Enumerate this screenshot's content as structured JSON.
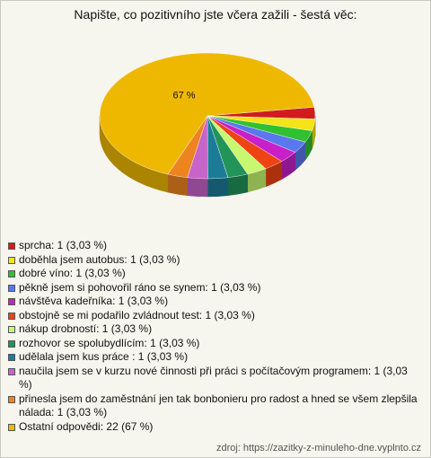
{
  "chart_data": {
    "type": "pie",
    "title": "Napište, co pozitivního jste včera zažili - šestá věc:",
    "categories": [
      "sprcha: 1 (3,03 %)",
      "doběhla jsem autobus: 1 (3,03 %)",
      "dobré víno: 1 (3,03 %)",
      "pěkně jsem si pohovořil ráno se synem: 1 (3,03 %)",
      "návštěva kadeřníka: 1 (3,03 %)",
      "obstojně se mi podařilo zvládnout test: 1 (3,03 %)",
      "nákup drobností: 1 (3,03 %)",
      "rozhovor se spolubydlícím: 1 (3,03 %)",
      "udělala jsem kus práce : 1 (3,03 %)",
      "naučila jsem se v kurzu nové činnosti při práci s počítačovým programem: 1 (3,03 %)",
      "přinesla jsem do zaměstnání jen tak bonbonieru pro radost a hned se všem zlepšila nálada: 1 (3,03 %)",
      "Ostatní odpovědi: 22 (67 %)"
    ],
    "values": [
      3.03,
      3.03,
      3.03,
      3.03,
      3.03,
      3.03,
      3.03,
      3.03,
      3.03,
      3.03,
      3.03,
      67
    ],
    "value_labels": [
      null,
      null,
      null,
      null,
      null,
      null,
      null,
      null,
      null,
      null,
      null,
      "67 %"
    ],
    "colors": [
      "#d01c1c",
      "#f4e418",
      "#30c030",
      "#5a78ee",
      "#c820c8",
      "#ee4414",
      "#c8f870",
      "#22945a",
      "#1c7c98",
      "#c864c8",
      "#ee8420",
      "#eeb800"
    ],
    "source": "zdroj: https://zazitky-z-minuleho-dne.vyplnto.cz"
  }
}
